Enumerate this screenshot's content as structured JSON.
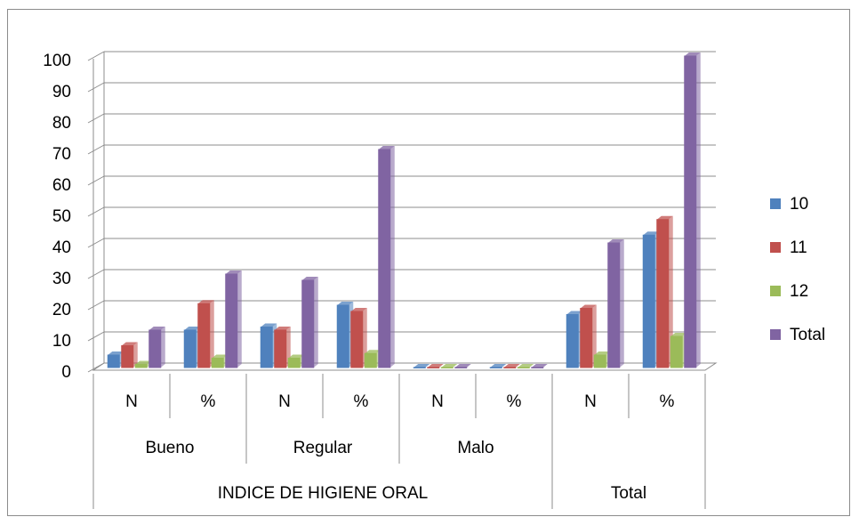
{
  "chart_data": {
    "type": "bar3d",
    "groups": [
      {
        "name": "INDICE DE HIGIENE ORAL",
        "subgroups": [
          {
            "name": "Bueno",
            "categories": [
              "N",
              "%"
            ]
          },
          {
            "name": "Regular",
            "categories": [
              "N",
              "%"
            ]
          },
          {
            "name": "Malo",
            "categories": [
              "N",
              "%"
            ]
          }
        ]
      },
      {
        "name": "Total",
        "subgroups": [
          {
            "name": null,
            "categories": [
              "N",
              "%"
            ]
          }
        ]
      }
    ],
    "series": [
      {
        "name": "10",
        "color": "#4f81bd",
        "values": [
          4,
          12,
          13,
          20,
          0,
          0,
          17,
          42.5
        ]
      },
      {
        "name": "11",
        "color": "#c0504d",
        "values": [
          7,
          20.5,
          12,
          18,
          0,
          0,
          19,
          47.5
        ]
      },
      {
        "name": "12",
        "color": "#9bbb59",
        "values": [
          1,
          3,
          3,
          4.5,
          0,
          0,
          4,
          10
        ]
      },
      {
        "name": "Total",
        "color": "#8064a2",
        "values": [
          12,
          30,
          28,
          70,
          0,
          0,
          40,
          100
        ]
      }
    ],
    "ylim": [
      0,
      100
    ],
    "yticks": [
      0,
      10,
      20,
      30,
      40,
      50,
      60,
      70,
      80,
      90,
      100
    ],
    "grid": true,
    "legend": "right"
  }
}
